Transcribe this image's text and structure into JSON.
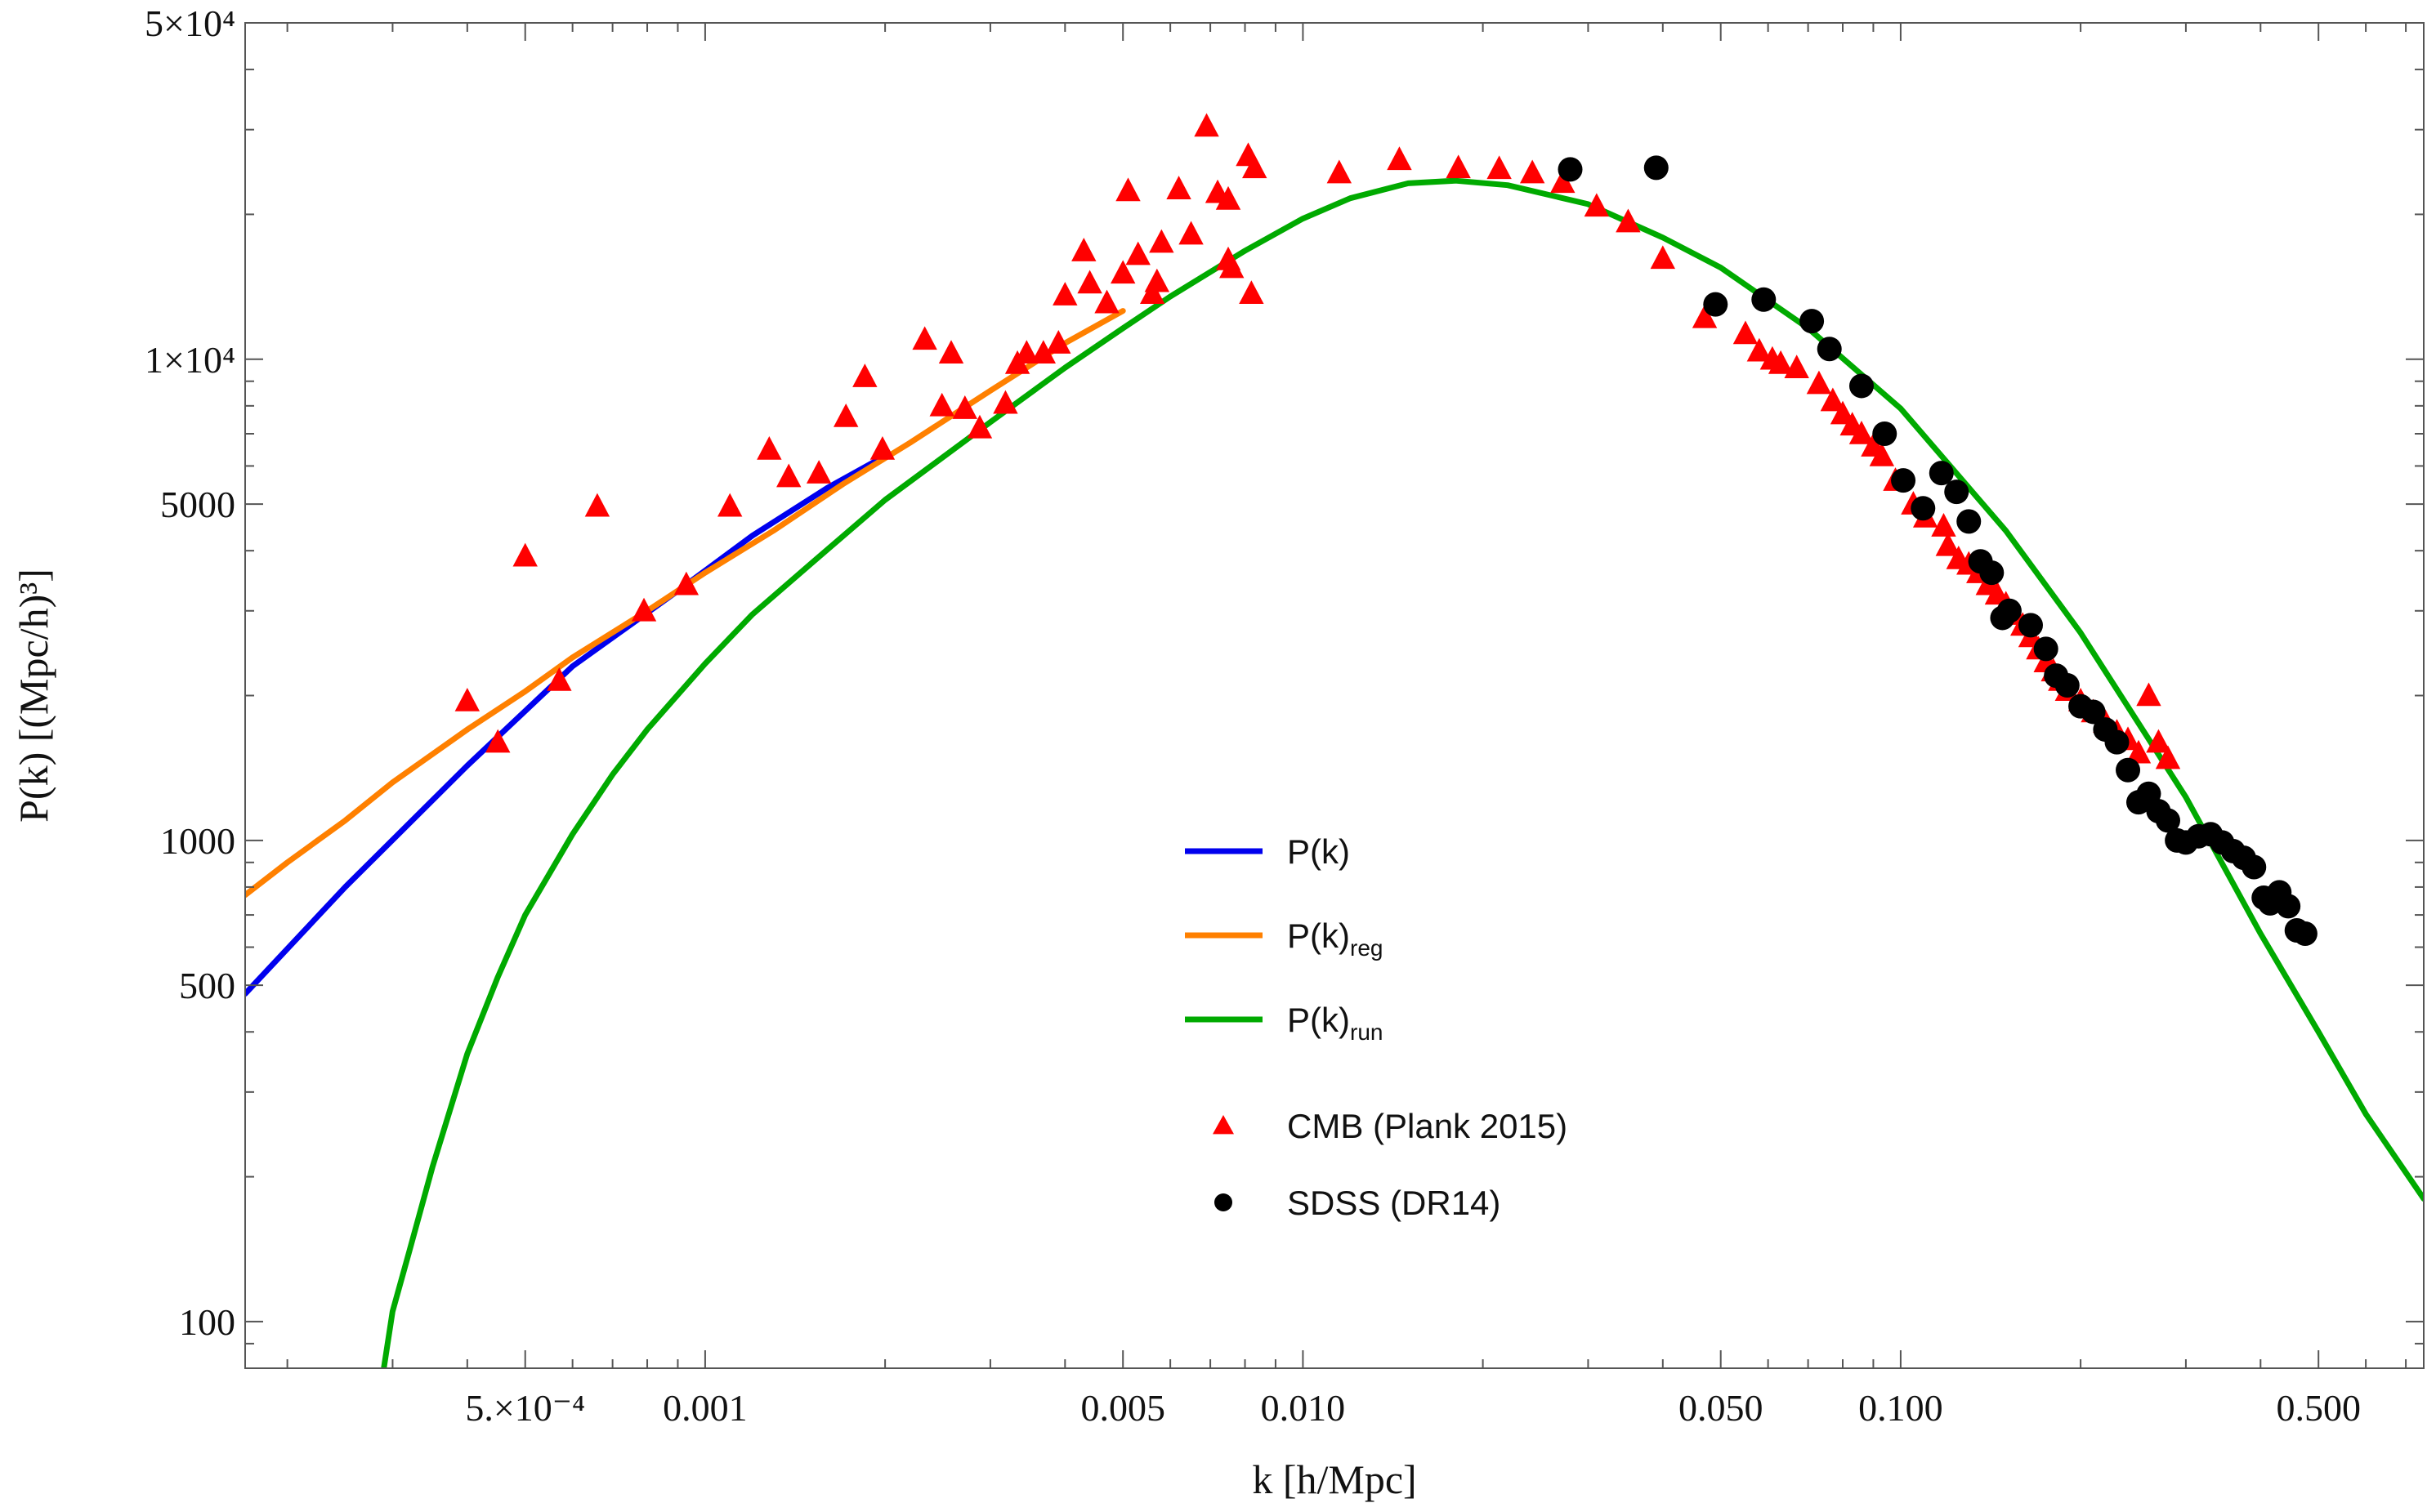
{
  "chart_data": {
    "type": "scatter",
    "title": "",
    "xlabel": "k [h/Mpc]",
    "ylabel": "P(k) [(Mpc/h)³]",
    "xscale": "log",
    "yscale": "log",
    "xlim": [
      0.00017,
      0.75
    ],
    "ylim": [
      80,
      50000
    ],
    "frame": "box",
    "legend_position": "center",
    "x_ticks": [
      {
        "value": 0.0005,
        "label": "5.×10⁻⁴"
      },
      {
        "value": 0.001,
        "label": "0.001"
      },
      {
        "value": 0.005,
        "label": "0.005"
      },
      {
        "value": 0.01,
        "label": "0.010"
      },
      {
        "value": 0.05,
        "label": "0.050"
      },
      {
        "value": 0.1,
        "label": "0.100"
      },
      {
        "value": 0.5,
        "label": "0.500"
      }
    ],
    "y_ticks": [
      {
        "value": 100,
        "label": "100"
      },
      {
        "value": 500,
        "label": "500"
      },
      {
        "value": 1000,
        "label": "1000"
      },
      {
        "value": 5000,
        "label": "5000"
      },
      {
        "value": 10000,
        "label": "1×10⁴"
      },
      {
        "value": 50000,
        "label": "5×10⁴"
      }
    ],
    "series": [
      {
        "name": "P(k)",
        "legend_main": "P(k)",
        "legend_sub": "",
        "kind": "line",
        "color": "#0000ee",
        "x": [
          0.00017,
          0.00025,
          0.0004,
          0.0006,
          0.0009,
          0.0012,
          0.0016,
          0.002
        ],
        "y": [
          480,
          800,
          1430,
          2300,
          3300,
          4300,
          5400,
          6300
        ]
      },
      {
        "name": "P(k)reg",
        "legend_main": "P(k)",
        "legend_sub": "reg",
        "kind": "line",
        "color": "#ff8000",
        "x": [
          0.00017,
          0.0002,
          0.00025,
          0.0003,
          0.0004,
          0.0005,
          0.0006,
          0.0008,
          0.001,
          0.0013,
          0.0017,
          0.0022,
          0.003,
          0.004,
          0.005
        ],
        "y": [
          770,
          900,
          1100,
          1320,
          1700,
          2040,
          2400,
          3000,
          3600,
          4400,
          5500,
          6700,
          8600,
          10800,
          12600
        ]
      },
      {
        "name": "P(k)run",
        "legend_main": "P(k)",
        "legend_sub": "run",
        "kind": "line",
        "color": "#00aa00",
        "x": [
          0.00029,
          0.0003,
          0.00032,
          0.00035,
          0.0004,
          0.00045,
          0.0005,
          0.0006,
          0.0007,
          0.0008,
          0.001,
          0.0012,
          0.0015,
          0.002,
          0.003,
          0.004,
          0.005,
          0.006,
          0.008,
          0.01,
          0.012,
          0.015,
          0.018,
          0.022,
          0.03,
          0.04,
          0.05,
          0.07,
          0.1,
          0.15,
          0.2,
          0.3,
          0.4,
          0.5,
          0.6,
          0.75
        ],
        "y": [
          80,
          105,
          140,
          210,
          360,
          520,
          700,
          1030,
          1370,
          1700,
          2330,
          2950,
          3750,
          5100,
          7400,
          9600,
          11600,
          13500,
          16800,
          19600,
          21600,
          23200,
          23500,
          23000,
          21000,
          17900,
          15500,
          11600,
          7900,
          4400,
          2700,
          1230,
          640,
          400,
          270,
          180
        ]
      },
      {
        "name": "CMB (Plank 2015)",
        "legend_main": "CMB (Plank 2015)",
        "kind": "triangle",
        "color": "#ff0000",
        "points": [
          [
            0.0004,
            1950
          ],
          [
            0.00045,
            1600
          ],
          [
            0.0005,
            3900
          ],
          [
            0.00057,
            2150
          ],
          [
            0.00066,
            4950
          ],
          [
            0.00079,
            3000
          ],
          [
            0.00093,
            3400
          ],
          [
            0.0011,
            4950
          ],
          [
            0.00128,
            6500
          ],
          [
            0.00138,
            5700
          ],
          [
            0.00155,
            5800
          ],
          [
            0.00172,
            7600
          ],
          [
            0.00185,
            9200
          ],
          [
            0.00198,
            6500
          ],
          [
            0.00233,
            11000
          ],
          [
            0.00249,
            8000
          ],
          [
            0.00258,
            10300
          ],
          [
            0.00272,
            7900
          ],
          [
            0.00288,
            7200
          ],
          [
            0.00318,
            8100
          ],
          [
            0.00333,
            9800
          ],
          [
            0.00345,
            10300
          ],
          [
            0.00368,
            10300
          ],
          [
            0.0039,
            10800
          ],
          [
            0.004,
            13600
          ],
          [
            0.0043,
            16800
          ],
          [
            0.0044,
            14400
          ],
          [
            0.0047,
            13100
          ],
          [
            0.005,
            15100
          ],
          [
            0.0051,
            22400
          ],
          [
            0.0053,
            16500
          ],
          [
            0.0056,
            13700
          ],
          [
            0.0057,
            14500
          ],
          [
            0.0058,
            17500
          ],
          [
            0.0062,
            22600
          ],
          [
            0.0065,
            18200
          ],
          [
            0.0069,
            30500
          ],
          [
            0.0072,
            22200
          ],
          [
            0.0075,
            21500
          ],
          [
            0.0075,
            16100
          ],
          [
            0.0076,
            15500
          ],
          [
            0.0081,
            26500
          ],
          [
            0.0083,
            25000
          ],
          [
            0.0082,
            13700
          ],
          [
            0.0115,
            24400
          ],
          [
            0.0145,
            26000
          ],
          [
            0.0182,
            25000
          ],
          [
            0.0213,
            24900
          ],
          [
            0.0242,
            24400
          ],
          [
            0.0272,
            23300
          ],
          [
            0.031,
            20800
          ],
          [
            0.035,
            19300
          ],
          [
            0.04,
            16200
          ],
          [
            0.047,
            12200
          ],
          [
            0.055,
            11300
          ],
          [
            0.058,
            10400
          ],
          [
            0.061,
            10000
          ],
          [
            0.063,
            9800
          ],
          [
            0.067,
            9600
          ],
          [
            0.073,
            8900
          ],
          [
            0.077,
            8200
          ],
          [
            0.08,
            7700
          ],
          [
            0.083,
            7300
          ],
          [
            0.086,
            7000
          ],
          [
            0.09,
            6600
          ],
          [
            0.093,
            6300
          ],
          [
            0.098,
            5600
          ],
          [
            0.105,
            5000
          ],
          [
            0.11,
            4700
          ],
          [
            0.118,
            4500
          ],
          [
            0.12,
            4100
          ],
          [
            0.125,
            3850
          ],
          [
            0.13,
            3750
          ],
          [
            0.135,
            3600
          ],
          [
            0.14,
            3400
          ],
          [
            0.145,
            3250
          ],
          [
            0.15,
            3100
          ],
          [
            0.155,
            2950
          ],
          [
            0.16,
            2800
          ],
          [
            0.165,
            2650
          ],
          [
            0.17,
            2500
          ],
          [
            0.175,
            2350
          ],
          [
            0.18,
            2250
          ],
          [
            0.185,
            2150
          ],
          [
            0.19,
            2050
          ],
          [
            0.2,
            1950
          ],
          [
            0.21,
            1850
          ],
          [
            0.22,
            1760
          ],
          [
            0.23,
            1680
          ],
          [
            0.24,
            1620
          ],
          [
            0.25,
            1520
          ],
          [
            0.26,
            2000
          ],
          [
            0.27,
            1600
          ],
          [
            0.28,
            1480
          ]
        ]
      },
      {
        "name": "SDSS (DR14)",
        "legend_main": "SDSS (DR14)",
        "kind": "circle",
        "color": "#000000",
        "points": [
          [
            0.028,
            24800
          ],
          [
            0.039,
            25000
          ],
          [
            0.049,
            13000
          ],
          [
            0.059,
            13300
          ],
          [
            0.071,
            12000
          ],
          [
            0.076,
            10500
          ],
          [
            0.086,
            8800
          ],
          [
            0.094,
            7000
          ],
          [
            0.101,
            5600
          ],
          [
            0.109,
            4900
          ],
          [
            0.117,
            5800
          ],
          [
            0.124,
            5300
          ],
          [
            0.13,
            4600
          ],
          [
            0.136,
            3800
          ],
          [
            0.142,
            3600
          ],
          [
            0.148,
            2900
          ],
          [
            0.152,
            3000
          ],
          [
            0.165,
            2800
          ],
          [
            0.175,
            2500
          ],
          [
            0.182,
            2200
          ],
          [
            0.19,
            2100
          ],
          [
            0.2,
            1900
          ],
          [
            0.21,
            1850
          ],
          [
            0.22,
            1700
          ],
          [
            0.23,
            1600
          ],
          [
            0.24,
            1400
          ],
          [
            0.25,
            1200
          ],
          [
            0.26,
            1250
          ],
          [
            0.27,
            1150
          ],
          [
            0.28,
            1100
          ],
          [
            0.29,
            1000
          ],
          [
            0.3,
            990
          ],
          [
            0.315,
            1020
          ],
          [
            0.33,
            1030
          ],
          [
            0.345,
            990
          ],
          [
            0.36,
            950
          ],
          [
            0.375,
            920
          ],
          [
            0.39,
            880
          ],
          [
            0.405,
            760
          ],
          [
            0.415,
            740
          ],
          [
            0.43,
            780
          ],
          [
            0.445,
            730
          ],
          [
            0.46,
            650
          ],
          [
            0.475,
            640
          ]
        ]
      }
    ]
  }
}
